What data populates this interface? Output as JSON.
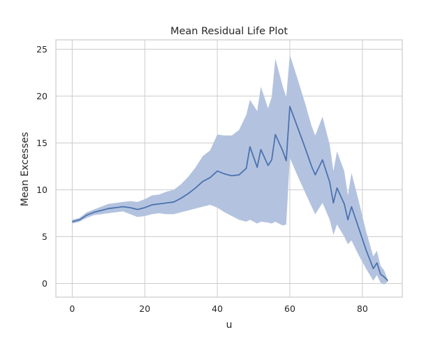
{
  "chart_data": {
    "type": "line",
    "title": "Mean Residual Life Plot",
    "xlabel": "u",
    "ylabel": "Mean Excesses",
    "xlim": [
      -4.5,
      91.0
    ],
    "ylim": [
      -1.45,
      26.0
    ],
    "xticks": [
      0,
      20,
      40,
      60,
      80
    ],
    "yticks": [
      0,
      5,
      10,
      15,
      20,
      25
    ],
    "grid": true,
    "colors": {
      "line": "#4c72b0",
      "band": "#b3c3df",
      "grid": "#cccccc",
      "spine": "#cccccc"
    },
    "series": [
      {
        "x": [
          0,
          2,
          4,
          6,
          8,
          10,
          12,
          14,
          16,
          18,
          20,
          22,
          24,
          26,
          28,
          30,
          32,
          34,
          36,
          38,
          40,
          42,
          44,
          46,
          48,
          49,
          51,
          52,
          54,
          55,
          56,
          58,
          59,
          60,
          62,
          64,
          66,
          67,
          69,
          71,
          72,
          73,
          75,
          76,
          77,
          79,
          81,
          83,
          84,
          85,
          86,
          87
        ],
        "y": [
          6.6,
          6.8,
          7.3,
          7.6,
          7.8,
          8.0,
          8.1,
          8.2,
          8.1,
          7.9,
          8.1,
          8.4,
          8.5,
          8.6,
          8.7,
          9.1,
          9.6,
          10.2,
          10.9,
          11.3,
          12.0,
          11.7,
          11.5,
          11.6,
          12.3,
          14.6,
          12.4,
          14.3,
          12.6,
          13.2,
          15.9,
          14.2,
          13.1,
          18.9,
          16.8,
          14.7,
          12.5,
          11.6,
          13.2,
          10.8,
          8.6,
          10.2,
          8.5,
          6.8,
          8.2,
          5.9,
          3.6,
          1.6,
          2.2,
          1.0,
          0.7,
          0.3
        ],
        "lower": [
          6.4,
          6.6,
          7.0,
          7.3,
          7.4,
          7.5,
          7.6,
          7.7,
          7.4,
          7.1,
          7.2,
          7.4,
          7.5,
          7.4,
          7.4,
          7.6,
          7.8,
          8.0,
          8.2,
          8.4,
          8.1,
          7.6,
          7.2,
          6.8,
          6.6,
          6.8,
          6.4,
          6.6,
          6.5,
          6.4,
          6.6,
          6.2,
          6.3,
          13.4,
          11.6,
          9.9,
          8.2,
          7.4,
          8.6,
          6.8,
          5.2,
          6.3,
          5.0,
          4.2,
          4.6,
          3.0,
          1.6,
          0.3,
          0.9,
          0.1,
          -0.1,
          0.2
        ],
        "upper": [
          6.8,
          7.0,
          7.6,
          7.9,
          8.2,
          8.5,
          8.6,
          8.7,
          8.8,
          8.7,
          9.0,
          9.4,
          9.5,
          9.8,
          10.0,
          10.6,
          11.4,
          12.4,
          13.6,
          14.2,
          15.9,
          15.8,
          15.8,
          16.4,
          18.0,
          19.6,
          18.4,
          21.0,
          18.7,
          19.9,
          24.0,
          21.1,
          19.9,
          24.4,
          22.0,
          19.5,
          16.8,
          15.8,
          17.8,
          14.8,
          12.0,
          14.1,
          12.0,
          9.4,
          11.8,
          8.8,
          5.6,
          2.9,
          3.5,
          1.9,
          1.4,
          0.4
        ]
      }
    ]
  }
}
